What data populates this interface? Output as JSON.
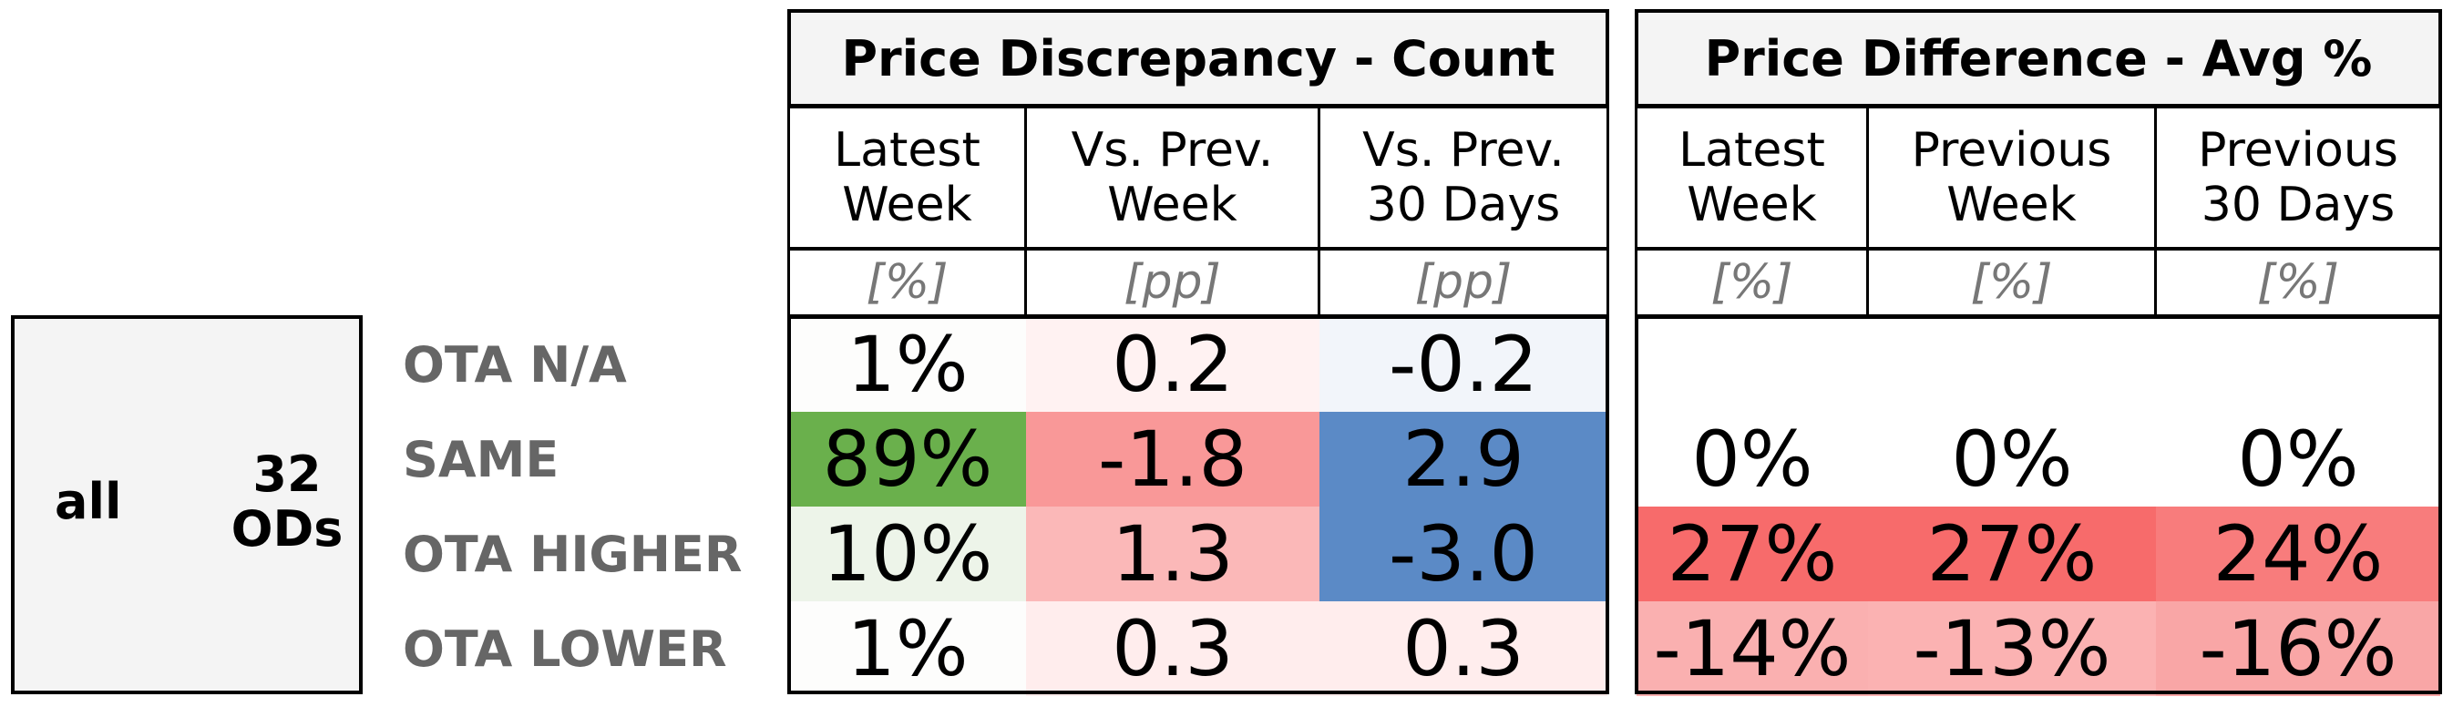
{
  "chart_data": {
    "type": "table",
    "group": {
      "segment": "all",
      "ods": "32\nODs"
    },
    "sections": [
      {
        "title": "Price Discrepancy - Count",
        "columns": [
          {
            "label": "Latest\nWeek",
            "unit": "[%]"
          },
          {
            "label": "Vs. Prev.\nWeek",
            "unit": "[pp]"
          },
          {
            "label": "Vs. Prev.\n30 Days",
            "unit": "[pp]"
          }
        ]
      },
      {
        "title": "Price Difference - Avg %",
        "columns": [
          {
            "label": "Latest\nWeek",
            "unit": "[%]"
          },
          {
            "label": "Previous\nWeek",
            "unit": "[%]"
          },
          {
            "label": "Previous\n30 Days",
            "unit": "[%]"
          }
        ]
      }
    ],
    "rows": [
      {
        "label": "OTA N/A",
        "count": [
          "1%",
          "0.2",
          "-0.2"
        ],
        "avg": [
          "",
          "",
          ""
        ]
      },
      {
        "label": "SAME",
        "count": [
          "89%",
          "-1.8",
          "2.9"
        ],
        "avg": [
          "0%",
          "0%",
          "0%"
        ]
      },
      {
        "label": "OTA HIGHER",
        "count": [
          "10%",
          "1.3",
          "-3.0"
        ],
        "avg": [
          "27%",
          "27%",
          "24%"
        ]
      },
      {
        "label": "OTA LOWER",
        "count": [
          "1%",
          "0.3",
          "0.3"
        ],
        "avg": [
          "-14%",
          "-13%",
          "-16%"
        ]
      }
    ],
    "cell_colors": {
      "count": [
        [
          "#fdfdfc",
          "#fff2f2",
          "#f2f5fa"
        ],
        [
          "#6ab04c",
          "#f99898",
          "#5b8ac6"
        ],
        [
          "#edf4e9",
          "#fbb8b8",
          "#5b8ac6"
        ],
        [
          "#fdfdfc",
          "#ffeded",
          "#ffeded"
        ]
      ],
      "avg": [
        [
          "#ffffff",
          "#ffffff",
          "#ffffff"
        ],
        [
          "#ffffff",
          "#ffffff",
          "#ffffff"
        ],
        [
          "#f76b6b",
          "#f76b6b",
          "#f87c7c"
        ],
        [
          "#fab0b0",
          "#fbb2b2",
          "#f9a6a6"
        ]
      ]
    }
  }
}
